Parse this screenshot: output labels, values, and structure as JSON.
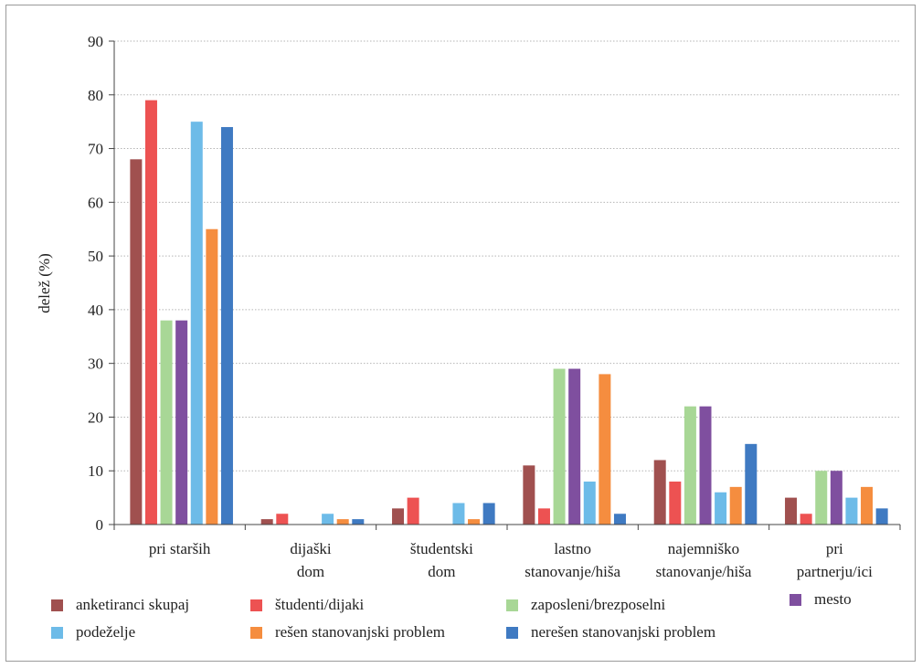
{
  "chart_data": {
    "type": "bar",
    "ylabel": "delež (%)",
    "xlabel": "",
    "ylim": [
      0,
      90
    ],
    "yticks": [
      0,
      10,
      20,
      30,
      40,
      50,
      60,
      70,
      80,
      90
    ],
    "grid": true,
    "legend_position": "bottom",
    "categories": [
      [
        "pri starših"
      ],
      [
        "dijaški",
        "dom"
      ],
      [
        "študentski",
        "dom"
      ],
      [
        "lastno",
        "stanovanje/hiša"
      ],
      [
        "najemniško",
        "stanovanje/hiša"
      ],
      [
        "pri",
        "partnerju/ici"
      ]
    ],
    "series": [
      {
        "name": "anketiranci skupaj",
        "color": "#a0504f",
        "values": [
          68,
          1,
          3,
          11,
          12,
          5
        ]
      },
      {
        "name": "študenti/dijaki",
        "color": "#ed5252",
        "values": [
          79,
          2,
          5,
          3,
          8,
          2
        ]
      },
      {
        "name": "zaposleni/brezposelni",
        "color": "#a8d796",
        "values": [
          38,
          0,
          0,
          29,
          22,
          10
        ]
      },
      {
        "name": "mesto",
        "color": "#7f4f9f",
        "values": [
          38,
          0,
          0,
          29,
          22,
          10
        ]
      },
      {
        "name": "podeželje",
        "color": "#6dbbe8",
        "values": [
          75,
          2,
          4,
          8,
          6,
          5
        ]
      },
      {
        "name": "rešen stanovanjski problem",
        "color": "#f58d3f",
        "values": [
          55,
          1,
          1,
          28,
          7,
          7
        ]
      },
      {
        "name": "nerešen stanovanjski problem",
        "color": "#3f7ac2",
        "values": [
          74,
          1,
          4,
          2,
          15,
          3
        ]
      }
    ]
  }
}
